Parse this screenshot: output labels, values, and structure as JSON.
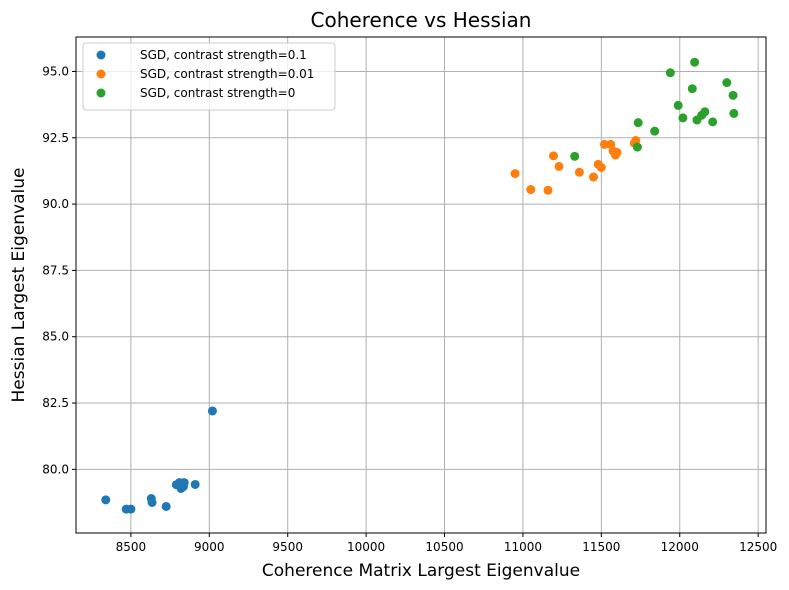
{
  "chart_data": {
    "type": "scatter",
    "title": "Coherence vs Hessian",
    "xlabel": "Coherence Matrix Largest Eigenvalue",
    "ylabel": "Hessian Largest Eigenvalue",
    "xlim": [
      8150,
      12550
    ],
    "ylim": [
      77.6,
      96.3
    ],
    "xticks": [
      8500,
      9000,
      9500,
      10000,
      10500,
      11000,
      11500,
      12000,
      12500
    ],
    "xtick_labels": [
      "8500",
      "9000",
      "9500",
      "10000",
      "10500",
      "11000",
      "11500",
      "12000",
      "12500"
    ],
    "yticks": [
      80.0,
      82.5,
      85.0,
      87.5,
      90.0,
      92.5,
      95.0
    ],
    "ytick_labels": [
      "80.0",
      "82.5",
      "85.0",
      "87.5",
      "90.0",
      "92.5",
      "95.0"
    ],
    "grid": true,
    "legend_position": "upper-left",
    "series": [
      {
        "name": "SGD, contrast strength=0.1",
        "color": "#1f77b4",
        "points": [
          [
            8340,
            78.85
          ],
          [
            8470,
            78.5
          ],
          [
            8500,
            78.5
          ],
          [
            8630,
            78.9
          ],
          [
            8635,
            78.75
          ],
          [
            8725,
            78.6
          ],
          [
            8790,
            79.42
          ],
          [
            8810,
            79.5
          ],
          [
            8820,
            79.28
          ],
          [
            8830,
            79.45
          ],
          [
            8835,
            79.35
          ],
          [
            8840,
            79.5
          ],
          [
            8910,
            79.43
          ],
          [
            9020,
            82.2
          ]
        ]
      },
      {
        "name": "SGD, contrast strength=0.01",
        "color": "#ff7f0e",
        "points": [
          [
            10950,
            91.15
          ],
          [
            11050,
            90.55
          ],
          [
            11160,
            90.52
          ],
          [
            11195,
            91.82
          ],
          [
            11230,
            91.42
          ],
          [
            11360,
            91.2
          ],
          [
            11450,
            91.02
          ],
          [
            11480,
            91.5
          ],
          [
            11500,
            91.38
          ],
          [
            11520,
            92.25
          ],
          [
            11560,
            92.25
          ],
          [
            11575,
            92.0
          ],
          [
            11590,
            91.85
          ],
          [
            11600,
            91.95
          ],
          [
            11710,
            92.3
          ],
          [
            11720,
            92.4
          ]
        ]
      },
      {
        "name": "SGD, contrast strength=0",
        "color": "#2ca02c",
        "points": [
          [
            11330,
            91.8
          ],
          [
            11730,
            92.15
          ],
          [
            11735,
            93.07
          ],
          [
            11840,
            92.75
          ],
          [
            11940,
            94.95
          ],
          [
            11990,
            93.72
          ],
          [
            12020,
            93.25
          ],
          [
            12080,
            94.35
          ],
          [
            12095,
            95.35
          ],
          [
            12110,
            93.17
          ],
          [
            12140,
            93.35
          ],
          [
            12160,
            93.48
          ],
          [
            12210,
            93.1
          ],
          [
            12300,
            94.58
          ],
          [
            12340,
            94.1
          ],
          [
            12345,
            93.42
          ]
        ]
      }
    ]
  }
}
